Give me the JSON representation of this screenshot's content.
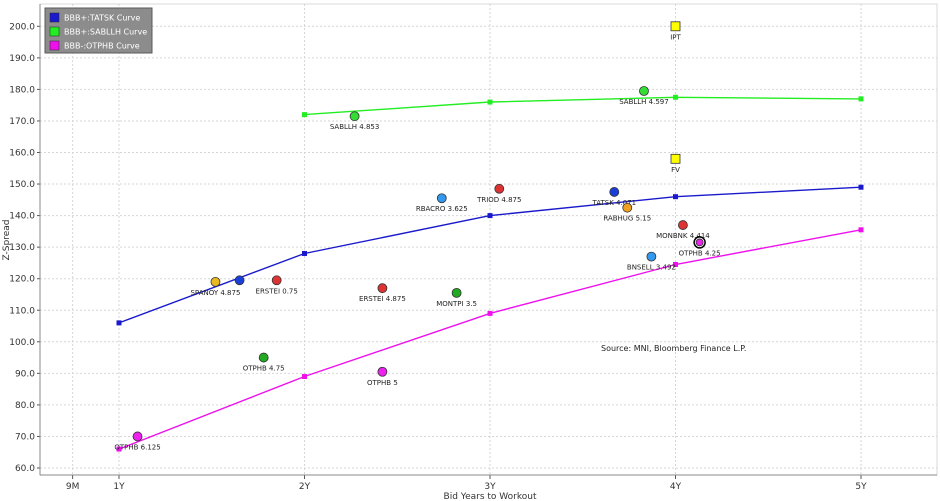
{
  "chart_data": {
    "type": "scatter",
    "xlabel": "Bid Years to Workout",
    "ylabel": "Z-Spread",
    "ylim": [
      60,
      200
    ],
    "yticks": [
      60,
      70,
      80,
      90,
      100,
      110,
      120,
      130,
      140,
      150,
      160,
      170,
      180,
      190,
      200
    ],
    "ytick_labels": [
      "60.0",
      "70.0",
      "80.0",
      "90.0",
      "100.0",
      "110.0",
      "120.0",
      "130.0",
      "140.0",
      "150.0",
      "160.0",
      "170.0",
      "180.0",
      "190.0",
      "200.0"
    ],
    "xticks": [
      0.75,
      1,
      2,
      3,
      4,
      5
    ],
    "xtick_labels": [
      "9M",
      "1Y",
      "2Y",
      "3Y",
      "4Y",
      "5Y"
    ],
    "grid": true,
    "legend_position": "top-left",
    "annotation": "Source: MNI, Bloomberg Finance L.P.",
    "curves": [
      {
        "name": "BBB+:TATSK Curve",
        "color": "#1a1acc",
        "points": [
          [
            1,
            106
          ],
          [
            2,
            128
          ],
          [
            3,
            140
          ],
          [
            4,
            146
          ],
          [
            5,
            149
          ]
        ]
      },
      {
        "name": "BBB+:SABLLH Curve",
        "color": "#22ee22",
        "points": [
          [
            2,
            172
          ],
          [
            3,
            176
          ],
          [
            4,
            177.5
          ],
          [
            5,
            177
          ]
        ]
      },
      {
        "name": "BBB-:OTPHB Curve",
        "color": "#ee11ee",
        "points": [
          [
            1,
            66
          ],
          [
            2,
            89
          ],
          [
            3,
            109
          ],
          [
            4,
            124.5
          ],
          [
            5,
            135.5
          ]
        ]
      }
    ],
    "points": [
      {
        "label": "SPANOY 4.875",
        "x": 1.52,
        "y": 119,
        "color": "#e8b820"
      },
      {
        "label": "",
        "x": 1.65,
        "y": 119.5,
        "color": "#1a3fd8"
      },
      {
        "label": "ERSTEI 0.75",
        "x": 1.85,
        "y": 119.5,
        "color": "#dd3333"
      },
      {
        "label": "SABLLH 4.853",
        "x": 2.27,
        "y": 171.5,
        "color": "#33dd33"
      },
      {
        "label": "ERSTEI 4.875",
        "x": 2.42,
        "y": 117,
        "color": "#dd3333"
      },
      {
        "label": "MONTPI 3.5",
        "x": 2.82,
        "y": 115.5,
        "color": "#22aa22"
      },
      {
        "label": "RBACRO 3.625",
        "x": 2.74,
        "y": 145.5,
        "color": "#3399ee"
      },
      {
        "label": "TRIOD 4.875",
        "x": 3.05,
        "y": 148.5,
        "color": "#dd3333"
      },
      {
        "label": "OTPHB 4.75",
        "x": 1.78,
        "y": 95,
        "color": "#22aa22"
      },
      {
        "label": "OTPHB 5",
        "x": 2.42,
        "y": 90.5,
        "color": "#ee22ee"
      },
      {
        "label": "OTPHB 6.125",
        "x": 1.1,
        "y": 70,
        "color": "#ee22ee"
      },
      {
        "label": "TATSK 4.071",
        "x": 3.67,
        "y": 147.5,
        "color": "#1a3fd8"
      },
      {
        "label": "RABHUG 5.15",
        "x": 3.74,
        "y": 142.5,
        "color": "#f0a020"
      },
      {
        "label": "SABLLH 4.597",
        "x": 3.83,
        "y": 179.5,
        "color": "#33dd33"
      },
      {
        "label": "MONBNK 4.414",
        "x": 4.04,
        "y": 137,
        "color": "#dd3333"
      },
      {
        "label": "OTPHB 4.25",
        "x": 4.13,
        "y": 131.5,
        "color": "#ee22ee",
        "outline": "#000000"
      },
      {
        "label": "BNSELL 3.492",
        "x": 3.87,
        "y": 127,
        "color": "#3399ee"
      }
    ],
    "squares": [
      {
        "label": "IPT",
        "x": 4.0,
        "y": 200,
        "color": "#ffff00"
      },
      {
        "label": "FV",
        "x": 4.0,
        "y": 158,
        "color": "#ffff00"
      }
    ]
  }
}
